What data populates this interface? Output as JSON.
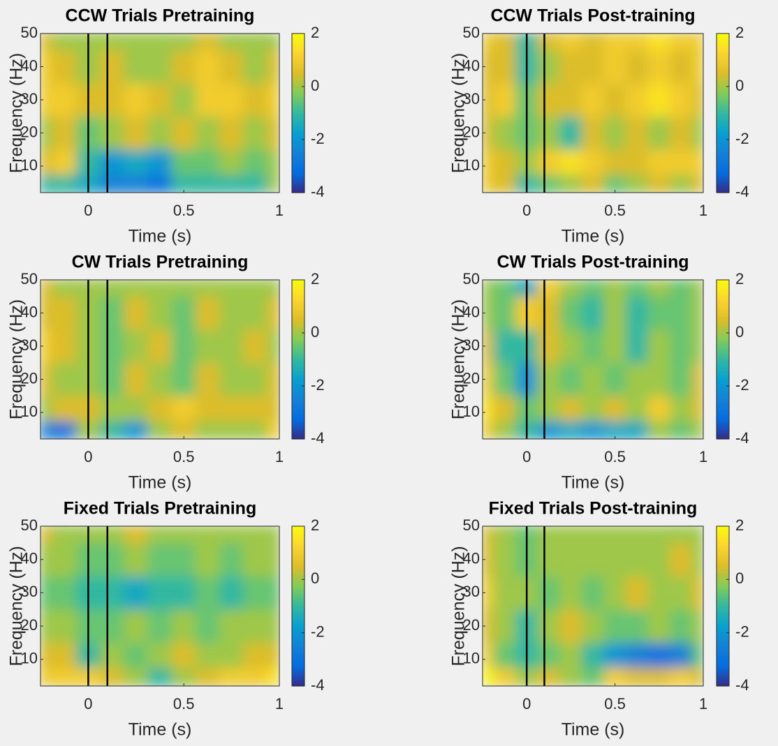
{
  "chart_data": [
    {
      "type": "heatmap",
      "title": "CCW Trials Pretraining",
      "xlabel": "Time (s)",
      "ylabel": "Frequency (Hz)",
      "x": [
        -0.25,
        -0.125,
        0,
        0.125,
        0.25,
        0.375,
        0.5,
        0.625,
        0.75,
        0.875,
        1
      ],
      "y": [
        5,
        10,
        20,
        30,
        40,
        50
      ],
      "z": [
        [
          -1,
          -1,
          -1.5,
          -2.5,
          -2.5,
          -3,
          -1,
          -1,
          -1,
          -1,
          0
        ],
        [
          0.5,
          1,
          -1,
          -2,
          -1.5,
          -2,
          -0.5,
          -0.5,
          0,
          -0.5,
          0
        ],
        [
          0,
          0.5,
          -0.5,
          0,
          0.5,
          0,
          0.5,
          0,
          0.5,
          0,
          0.5
        ],
        [
          1,
          1,
          0.5,
          0.5,
          1,
          0.5,
          0,
          1,
          1,
          0.5,
          1
        ],
        [
          1,
          0.5,
          0,
          0.5,
          0,
          0,
          0.5,
          1,
          0.5,
          0,
          0.5
        ],
        [
          0.5,
          0,
          0,
          0,
          0,
          0,
          0,
          0.5,
          0,
          0,
          0
        ]
      ],
      "markers": [
        0,
        0.1
      ],
      "xlim": [
        -0.25,
        1
      ],
      "xticks": [
        0,
        0.5,
        1
      ],
      "ylim": [
        2,
        50
      ],
      "yticks": [
        10,
        20,
        30,
        40,
        50
      ],
      "clim": [
        -4,
        2
      ],
      "colorbar_ticks": [
        -4,
        -2,
        0,
        2
      ]
    },
    {
      "type": "heatmap",
      "title": "CCW Trials Post-training",
      "xlabel": "Time (s)",
      "ylabel": "Frequency (Hz)",
      "x": [
        -0.25,
        -0.125,
        0,
        0.125,
        0.25,
        0.375,
        0.5,
        0.625,
        0.75,
        0.875,
        1
      ],
      "y": [
        5,
        10,
        20,
        30,
        40,
        50
      ],
      "z": [
        [
          1,
          0.5,
          -1,
          -0.5,
          0,
          0.5,
          -0.5,
          0,
          0.5,
          0,
          0.5
        ],
        [
          1,
          0.5,
          0,
          1,
          1.5,
          1,
          0.5,
          0.5,
          1,
          1,
          1
        ],
        [
          0.5,
          0,
          -0.5,
          0,
          -1,
          0.5,
          0,
          0.5,
          0,
          0.5,
          0
        ],
        [
          0.5,
          1,
          -0.5,
          0.5,
          0.5,
          1,
          0.5,
          1,
          1.5,
          1,
          0.5
        ],
        [
          0.5,
          0.5,
          -1,
          0,
          0.5,
          0.5,
          1,
          0.5,
          1,
          0.5,
          1
        ],
        [
          1,
          0.5,
          -1,
          0.5,
          1,
          0.5,
          1,
          1,
          1.5,
          1,
          1
        ]
      ],
      "markers": [
        0,
        0.1
      ],
      "xlim": [
        -0.25,
        1
      ],
      "xticks": [
        0,
        0.5,
        1
      ],
      "ylim": [
        2,
        50
      ],
      "yticks": [
        10,
        20,
        30,
        40,
        50
      ],
      "clim": [
        -4,
        2
      ],
      "colorbar_ticks": [
        -4,
        -2,
        0,
        2
      ]
    },
    {
      "type": "heatmap",
      "title": "CW Trials Pretraining",
      "xlabel": "Time (s)",
      "ylabel": "Frequency (Hz)",
      "x": [
        -0.25,
        -0.125,
        0,
        0.125,
        0.25,
        0.375,
        0.5,
        0.625,
        0.75,
        0.875,
        1
      ],
      "y": [
        5,
        10,
        20,
        30,
        40,
        50
      ],
      "z": [
        [
          -2.5,
          -3,
          0,
          -1,
          -2,
          0,
          0.5,
          0,
          0,
          0,
          1
        ],
        [
          0,
          0.5,
          0.5,
          0,
          0,
          0.5,
          1,
          0.5,
          0.5,
          0.5,
          0.5
        ],
        [
          0.5,
          0,
          0,
          -0.5,
          0.5,
          0,
          -0.5,
          0.5,
          0,
          0,
          0.5
        ],
        [
          1,
          0.5,
          0,
          -0.5,
          0,
          0.5,
          -0.5,
          0,
          0,
          0.5,
          0
        ],
        [
          0.5,
          0.5,
          0,
          -0.5,
          0.5,
          0,
          -0.5,
          0.5,
          0,
          0,
          0.5
        ],
        [
          0.5,
          0,
          0,
          0,
          0,
          0,
          0,
          0,
          0,
          0,
          0
        ]
      ],
      "markers": [
        0,
        0.1
      ],
      "xlim": [
        -0.25,
        1
      ],
      "xticks": [
        0,
        0.5,
        1
      ],
      "ylim": [
        2,
        50
      ],
      "yticks": [
        10,
        20,
        30,
        40,
        50
      ],
      "clim": [
        -4,
        2
      ],
      "colorbar_ticks": [
        -4,
        -2,
        0,
        2
      ]
    },
    {
      "type": "heatmap",
      "title": "CW Trials Post-training",
      "xlabel": "Time (s)",
      "ylabel": "Frequency (Hz)",
      "x": [
        -0.25,
        -0.125,
        0,
        0.125,
        0.25,
        0.375,
        0.5,
        0.625,
        0.75,
        0.875,
        1
      ],
      "y": [
        5,
        10,
        20,
        30,
        40,
        50
      ],
      "z": [
        [
          1,
          0,
          -1,
          -2,
          -1.5,
          -2,
          -1.5,
          -1.5,
          0,
          -0.5,
          0
        ],
        [
          1.5,
          0.5,
          -0.5,
          0,
          0.5,
          0,
          0.5,
          0,
          1,
          0,
          0.5
        ],
        [
          1,
          -0.5,
          -2,
          0,
          -0.5,
          0,
          -0.5,
          0,
          0,
          -0.5,
          0.5
        ],
        [
          0.5,
          -1,
          -1,
          0.5,
          0,
          -0.5,
          0,
          -1,
          0,
          -0.5,
          0
        ],
        [
          0,
          -0.5,
          1,
          0.5,
          -0.5,
          -1,
          0,
          -1,
          -0.5,
          -0.5,
          0
        ],
        [
          0,
          -0.5,
          -1.5,
          1,
          0,
          -0.5,
          0,
          -0.5,
          0,
          -0.5,
          0
        ]
      ],
      "markers": [
        0,
        0.1
      ],
      "xlim": [
        -0.25,
        1
      ],
      "xticks": [
        0,
        0.5,
        1
      ],
      "ylim": [
        2,
        50
      ],
      "yticks": [
        10,
        20,
        30,
        40,
        50
      ],
      "clim": [
        -4,
        2
      ],
      "colorbar_ticks": [
        -4,
        -2,
        0,
        2
      ]
    },
    {
      "type": "heatmap",
      "title": "Fixed Trials Pretraining",
      "xlabel": "Time (s)",
      "ylabel": "Frequency (Hz)",
      "x": [
        -0.25,
        -0.125,
        0,
        0.125,
        0.25,
        0.375,
        0.5,
        0.625,
        0.75,
        0.875,
        1
      ],
      "y": [
        5,
        10,
        20,
        30,
        40,
        50
      ],
      "z": [
        [
          1,
          1,
          1,
          0.5,
          0,
          -1,
          0,
          0.5,
          1,
          1,
          1.5
        ],
        [
          0.5,
          0.5,
          -1,
          0,
          -0.5,
          0,
          0.5,
          0,
          0,
          0.5,
          0.5
        ],
        [
          0,
          0,
          -0.5,
          -0.5,
          0,
          -0.5,
          0,
          -0.5,
          0,
          0,
          0
        ],
        [
          -0.5,
          -0.5,
          -1,
          -1,
          -1.5,
          -1,
          -1,
          -0.5,
          -1,
          -0.5,
          -0.5
        ],
        [
          0,
          0,
          -0.5,
          -0.5,
          0,
          -0.5,
          -0.5,
          0,
          -0.5,
          0,
          0
        ],
        [
          0.5,
          0,
          0,
          0,
          0.5,
          0,
          0,
          0,
          0,
          0,
          0
        ]
      ],
      "markers": [
        0,
        0.1
      ],
      "xlim": [
        -0.25,
        1
      ],
      "xticks": [
        0,
        0.5,
        1
      ],
      "ylim": [
        2,
        50
      ],
      "yticks": [
        10,
        20,
        30,
        40,
        50
      ],
      "clim": [
        -4,
        2
      ],
      "colorbar_ticks": [
        -4,
        -2,
        0,
        2
      ]
    },
    {
      "type": "heatmap",
      "title": "Fixed Trials Post-training",
      "xlabel": "Time (s)",
      "ylabel": "Frequency (Hz)",
      "x": [
        -0.25,
        -0.125,
        0,
        0.125,
        0.25,
        0.375,
        0.5,
        0.625,
        0.75,
        0.875,
        1
      ],
      "y": [
        5,
        10,
        20,
        30,
        40,
        50
      ],
      "z": [
        [
          2,
          1,
          0,
          0.5,
          0,
          -0.5,
          1,
          0.5,
          0.5,
          1,
          0.5
        ],
        [
          1,
          -0.5,
          -1,
          -0.5,
          0,
          -1,
          -2,
          -2.5,
          -3,
          -2.5,
          -0.5
        ],
        [
          0.5,
          0,
          -1,
          0,
          0.5,
          0,
          -0.5,
          -0.5,
          0,
          -0.5,
          0
        ],
        [
          1,
          0,
          0,
          -0.5,
          0,
          -0.5,
          0,
          0.5,
          0,
          0,
          0.5
        ],
        [
          0.5,
          0,
          -0.5,
          0,
          0,
          0,
          0,
          0,
          0,
          0.5,
          0
        ],
        [
          0.5,
          0,
          -0.5,
          0,
          0,
          0,
          0,
          0,
          0,
          0,
          0
        ]
      ],
      "markers": [
        0,
        0.1
      ],
      "xlim": [
        -0.25,
        1
      ],
      "xticks": [
        0,
        0.5,
        1
      ],
      "ylim": [
        2,
        50
      ],
      "yticks": [
        10,
        20,
        30,
        40,
        50
      ],
      "clim": [
        -4,
        2
      ],
      "colorbar_ticks": [
        -4,
        -2,
        0,
        2
      ]
    }
  ]
}
